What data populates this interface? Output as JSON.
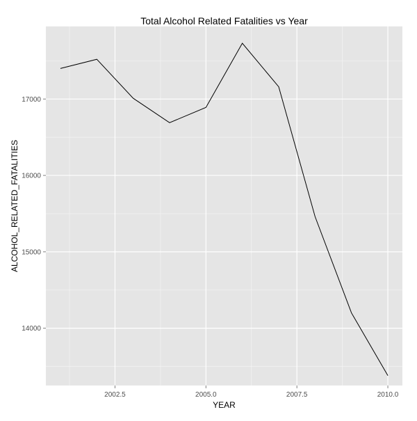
{
  "chart_data": {
    "type": "line",
    "title": "Total Alcohol Related Fatalities vs Year",
    "xlabel": "YEAR",
    "ylabel": "ALCOHOL_RELATED_FATALITIES",
    "xlim": [
      2000.6,
      2010.4
    ],
    "ylim": [
      13250,
      17950
    ],
    "x_ticks": [
      2002.5,
      2005.0,
      2007.5,
      2010.0
    ],
    "x_tick_labels": [
      "2002.5",
      "2005.0",
      "2007.5",
      "2010.0"
    ],
    "y_ticks": [
      14000,
      15000,
      16000,
      17000
    ],
    "y_tick_labels": [
      "14000",
      "15000",
      "16000",
      "17000"
    ],
    "grid": true,
    "colors": {
      "panel": "#e5e5e5",
      "grid_major": "#ffffff",
      "grid_minor": "#f2f2f2",
      "line": "#000000"
    },
    "series": [
      {
        "x": [
          2001,
          2002,
          2003,
          2004,
          2005,
          2006,
          2007,
          2008,
          2009,
          2010
        ],
        "values": [
          17400,
          17520,
          17010,
          16690,
          16890,
          17730,
          17160,
          15460,
          14200,
          13380
        ]
      }
    ]
  }
}
